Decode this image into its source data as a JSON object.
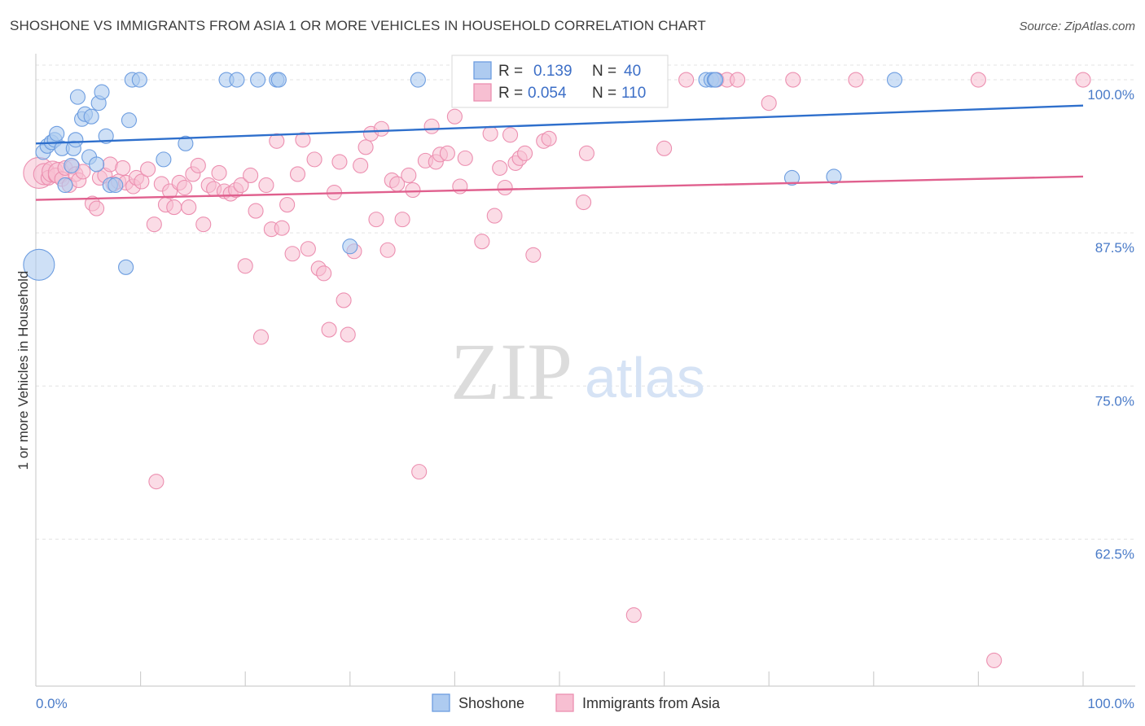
{
  "title": "SHOSHONE VS IMMIGRANTS FROM ASIA 1 OR MORE VEHICLES IN HOUSEHOLD CORRELATION CHART",
  "source": "Source: ZipAtlas.com",
  "watermark": {
    "zip": "ZIP",
    "atlas": "atlas"
  },
  "legend_box": {
    "rows": [
      {
        "r_label": "R =",
        "r_value": "0.139",
        "n_label": "N =",
        "n_value": "40"
      },
      {
        "r_label": "R =",
        "r_value": "0.054",
        "n_label": "N =",
        "n_value": "110"
      }
    ]
  },
  "colors": {
    "shoshone_fill": "#aecbf0",
    "shoshone_stroke": "#6d9de0",
    "shoshone_line": "#2e6fcc",
    "asia_fill": "#f7bfd2",
    "asia_stroke": "#ec8fb0",
    "asia_line": "#e0608e",
    "tick_label": "#4a7bc8",
    "grid": "#e3e3e3"
  },
  "chart_data": {
    "type": "scatter",
    "title": "SHOSHONE VS IMMIGRANTS FROM ASIA 1 OR MORE VEHICLES IN HOUSEHOLD CORRELATION CHART",
    "xlabel": "",
    "ylabel": "1 or more Vehicles in Household",
    "xlim": [
      0,
      100
    ],
    "ylim": [
      50.5,
      101.2
    ],
    "x_tick_labels": [
      "0.0%",
      "100.0%"
    ],
    "y_ticks": [
      62.5,
      75.0,
      87.5,
      100.0
    ],
    "y_tick_labels": [
      "62.5%",
      "75.0%",
      "87.5%",
      "100.0%"
    ],
    "grid": true,
    "legend_position": "bottom",
    "series": [
      {
        "name": "Shoshone",
        "r": 0.139,
        "n": 40,
        "trend": [
          [
            0,
            94.8
          ],
          [
            100,
            97.9
          ]
        ],
        "points": [
          [
            0.3,
            84.9,
            3
          ],
          [
            0.7,
            94.1,
            1
          ],
          [
            1.1,
            94.6,
            1
          ],
          [
            1.5,
            94.9,
            1
          ],
          [
            1.8,
            95.1,
            1
          ],
          [
            2.0,
            95.6,
            1
          ],
          [
            2.5,
            94.4,
            1
          ],
          [
            2.8,
            91.4,
            1
          ],
          [
            3.4,
            93.0,
            1
          ],
          [
            3.6,
            94.4,
            1
          ],
          [
            3.8,
            95.1,
            1
          ],
          [
            4.0,
            98.6,
            1
          ],
          [
            4.4,
            96.8,
            1
          ],
          [
            4.7,
            97.2,
            1
          ],
          [
            5.1,
            93.7,
            1
          ],
          [
            5.3,
            97.0,
            1
          ],
          [
            5.8,
            93.1,
            1
          ],
          [
            6.0,
            98.1,
            1
          ],
          [
            6.3,
            99.0,
            1
          ],
          [
            6.7,
            95.4,
            1
          ],
          [
            7.1,
            91.4,
            1
          ],
          [
            7.6,
            91.4,
            1
          ],
          [
            8.6,
            84.7,
            1
          ],
          [
            8.9,
            96.7,
            1
          ],
          [
            9.2,
            100.0,
            1
          ],
          [
            9.9,
            100.0,
            1
          ],
          [
            12.2,
            93.5,
            1
          ],
          [
            14.3,
            94.8,
            1
          ],
          [
            18.2,
            100.0,
            1
          ],
          [
            19.2,
            100.0,
            1
          ],
          [
            21.2,
            100.0,
            1
          ],
          [
            23.0,
            100.0,
            1
          ],
          [
            23.2,
            100.0,
            1
          ],
          [
            30.0,
            86.4,
            1
          ],
          [
            36.5,
            100.0,
            1
          ],
          [
            64.0,
            100.0,
            1
          ],
          [
            64.5,
            100.0,
            1
          ],
          [
            64.8,
            100.0,
            1
          ],
          [
            64.9,
            100.0,
            1
          ],
          [
            72.2,
            92.0,
            1
          ],
          [
            76.2,
            92.1,
            1
          ],
          [
            82.0,
            100.0,
            1
          ]
        ]
      },
      {
        "name": "Immigrants from Asia",
        "r": 0.054,
        "n": 110,
        "trend": [
          [
            0,
            90.2
          ],
          [
            100,
            92.1
          ]
        ],
        "points": [
          [
            0.3,
            92.4,
            3
          ],
          [
            0.8,
            92.3,
            2
          ],
          [
            1.2,
            92.0,
            1
          ],
          [
            1.6,
            92.5,
            2
          ],
          [
            1.9,
            92.2,
            1
          ],
          [
            2.2,
            92.4,
            2
          ],
          [
            2.5,
            91.9,
            1
          ],
          [
            2.8,
            92.8,
            1
          ],
          [
            3.2,
            91.4,
            1
          ],
          [
            3.5,
            92.9,
            1
          ],
          [
            3.8,
            92.3,
            1
          ],
          [
            4.1,
            91.8,
            1
          ],
          [
            4.5,
            92.5,
            1
          ],
          [
            5.4,
            89.9,
            1
          ],
          [
            5.8,
            89.5,
            1
          ],
          [
            6.1,
            92.0,
            1
          ],
          [
            6.6,
            92.2,
            1
          ],
          [
            7.1,
            93.1,
            1
          ],
          [
            7.4,
            91.5,
            1
          ],
          [
            7.9,
            91.7,
            1
          ],
          [
            8.3,
            92.8,
            1
          ],
          [
            8.6,
            91.6,
            1
          ],
          [
            9.3,
            91.3,
            1
          ],
          [
            9.6,
            92.0,
            1
          ],
          [
            10.1,
            91.7,
            1
          ],
          [
            10.7,
            92.7,
            1
          ],
          [
            11.3,
            88.2,
            1
          ],
          [
            11.5,
            67.2,
            1
          ],
          [
            12.0,
            91.5,
            1
          ],
          [
            12.4,
            89.8,
            1
          ],
          [
            12.8,
            90.9,
            1
          ],
          [
            13.2,
            89.6,
            1
          ],
          [
            13.7,
            91.6,
            1
          ],
          [
            14.2,
            91.2,
            1
          ],
          [
            14.6,
            89.6,
            1
          ],
          [
            15.0,
            92.3,
            1
          ],
          [
            15.5,
            93.0,
            1
          ],
          [
            16.0,
            88.2,
            1
          ],
          [
            16.5,
            91.4,
            1
          ],
          [
            17.0,
            91.1,
            1
          ],
          [
            17.5,
            92.4,
            1
          ],
          [
            18.0,
            90.9,
            1
          ],
          [
            18.6,
            90.7,
            1
          ],
          [
            19.1,
            91.0,
            1
          ],
          [
            19.6,
            91.4,
            1
          ],
          [
            20.0,
            84.8,
            1
          ],
          [
            20.5,
            92.2,
            1
          ],
          [
            21.0,
            89.3,
            1
          ],
          [
            21.5,
            79.0,
            1
          ],
          [
            22.0,
            91.4,
            1
          ],
          [
            22.5,
            87.8,
            1
          ],
          [
            23.0,
            95.0,
            1
          ],
          [
            23.5,
            87.9,
            1
          ],
          [
            24.0,
            89.8,
            1
          ],
          [
            24.5,
            85.8,
            1
          ],
          [
            25.0,
            92.3,
            1
          ],
          [
            25.5,
            95.1,
            1
          ],
          [
            26.0,
            86.2,
            1
          ],
          [
            26.6,
            93.5,
            1
          ],
          [
            27.0,
            84.6,
            1
          ],
          [
            27.5,
            84.2,
            1
          ],
          [
            28.0,
            79.6,
            1
          ],
          [
            28.5,
            90.8,
            1
          ],
          [
            29.0,
            93.3,
            1
          ],
          [
            29.4,
            82.0,
            1
          ],
          [
            29.8,
            79.2,
            1
          ],
          [
            30.4,
            86.0,
            1
          ],
          [
            31.0,
            93.0,
            1
          ],
          [
            31.5,
            94.5,
            1
          ],
          [
            32.0,
            95.6,
            1
          ],
          [
            32.5,
            88.6,
            1
          ],
          [
            33.0,
            96.0,
            1
          ],
          [
            33.6,
            86.1,
            1
          ],
          [
            34.0,
            91.8,
            1
          ],
          [
            34.5,
            91.5,
            1
          ],
          [
            35.0,
            88.6,
            1
          ],
          [
            35.6,
            92.2,
            1
          ],
          [
            36.0,
            91.0,
            1
          ],
          [
            36.6,
            68.0,
            1
          ],
          [
            37.2,
            93.4,
            1
          ],
          [
            37.8,
            96.2,
            1
          ],
          [
            38.2,
            93.3,
            1
          ],
          [
            38.6,
            93.9,
            1
          ],
          [
            39.3,
            94.0,
            1
          ],
          [
            40.0,
            97.0,
            1
          ],
          [
            40.5,
            91.3,
            1
          ],
          [
            41.0,
            93.6,
            1
          ],
          [
            42.0,
            100.0,
            1
          ],
          [
            42.6,
            86.8,
            1
          ],
          [
            43.4,
            95.6,
            1
          ],
          [
            43.8,
            88.9,
            1
          ],
          [
            44.3,
            92.8,
            1
          ],
          [
            44.8,
            91.2,
            1
          ],
          [
            45.3,
            95.5,
            1
          ],
          [
            45.8,
            93.2,
            1
          ],
          [
            46.2,
            93.6,
            1
          ],
          [
            46.7,
            94.0,
            1
          ],
          [
            47.5,
            85.7,
            1
          ],
          [
            48.5,
            95.0,
            1
          ],
          [
            49.0,
            95.2,
            1
          ],
          [
            52.3,
            90.0,
            1
          ],
          [
            52.6,
            94.0,
            1
          ],
          [
            53.0,
            100.0,
            1
          ],
          [
            57.1,
            56.3,
            1
          ],
          [
            57.4,
            100.0,
            1
          ],
          [
            60.0,
            94.4,
            1
          ],
          [
            62.1,
            100.0,
            1
          ],
          [
            65.0,
            100.0,
            1
          ],
          [
            66.0,
            100.0,
            1
          ],
          [
            67.0,
            100.0,
            1
          ],
          [
            70.0,
            98.1,
            1
          ],
          [
            72.3,
            100.0,
            1
          ],
          [
            78.3,
            100.0,
            1
          ],
          [
            90.0,
            100.0,
            1
          ],
          [
            91.5,
            52.6,
            1
          ],
          [
            100.0,
            100.0,
            1
          ]
        ]
      }
    ]
  }
}
